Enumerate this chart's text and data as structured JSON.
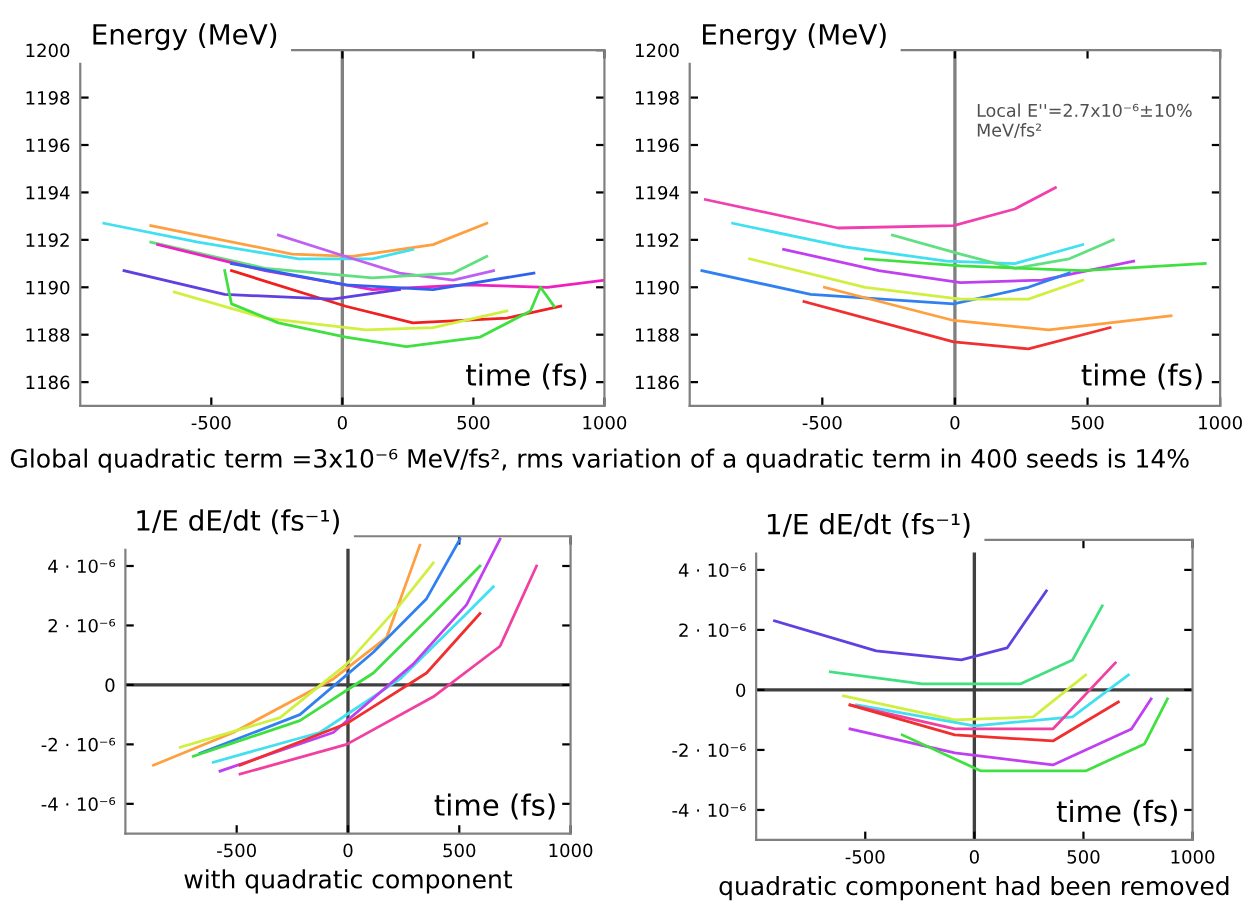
{
  "chart_data": [
    {
      "type": "line",
      "ylabel": "Energy (MeV)",
      "xlabel": "time (fs)",
      "xlim": [
        -1000,
        1000
      ],
      "ylim": [
        1185,
        1200
      ],
      "xticks": [
        -500,
        0,
        500,
        1000
      ],
      "yticks": [
        1186,
        1188,
        1190,
        1192,
        1194,
        1196,
        1198,
        1200
      ],
      "annotations": [
        "Global quadratic term =3x10⁻⁶ MeV/fs², rms variation of a quadratic term in 400 seeds is 14%"
      ],
      "ref_lines": [
        {
          "axis": "x",
          "value": 0,
          "color": "#808080"
        }
      ],
      "series": [
        {
          "color": "#ffa040",
          "x": [
            -731,
            -192,
            38,
            346,
            551
          ],
          "values": [
            1192.6,
            1191.4,
            1191.3,
            1191.8,
            1192.7
          ]
        },
        {
          "color": "#40e0f0",
          "x": [
            -910,
            -551,
            -167,
            115,
            269
          ],
          "values": [
            1192.7,
            1191.9,
            1191.2,
            1191.2,
            1191.6
          ]
        },
        {
          "color": "#c060f0",
          "x": [
            -244,
            13,
            218,
            423,
            577
          ],
          "values": [
            1192.2,
            1191.3,
            1190.6,
            1190.3,
            1190.7
          ]
        },
        {
          "color": "#60e080",
          "x": [
            -731,
            -295,
            115,
            423,
            551
          ],
          "values": [
            1191.9,
            1190.8,
            1190.4,
            1190.6,
            1191.3
          ]
        },
        {
          "color": "#f020c0",
          "x": [
            -705,
            -295,
            115,
            474,
            782,
            1000
          ],
          "values": [
            1191.8,
            1190.7,
            1189.9,
            1190.1,
            1190.0,
            1190.3
          ]
        },
        {
          "color": "#3060f0",
          "x": [
            -423,
            13,
            346,
            731
          ],
          "values": [
            1191.0,
            1190.1,
            1189.9,
            1190.6
          ]
        },
        {
          "color": "#f02020",
          "x": [
            -423,
            13,
            269,
            628,
            833
          ],
          "values": [
            1190.7,
            1189.2,
            1188.5,
            1188.7,
            1189.2
          ]
        },
        {
          "color": "#6040e0",
          "x": [
            -833,
            -449,
            -38,
            218
          ],
          "values": [
            1190.7,
            1189.7,
            1189.5,
            1189.9
          ]
        },
        {
          "color": "#d0f040",
          "x": [
            -641,
            -295,
            90,
            346,
            628
          ],
          "values": [
            1189.8,
            1188.7,
            1188.2,
            1188.3,
            1189.0
          ]
        },
        {
          "color": "#40e040",
          "x": [
            -449,
            -423,
            -244,
            13,
            244,
            526,
            718,
            756,
            808
          ],
          "values": [
            1190.7,
            1189.3,
            1188.5,
            1187.9,
            1187.5,
            1187.9,
            1189.0,
            1190.0,
            1189.2
          ]
        }
      ]
    },
    {
      "type": "line",
      "ylabel": "Energy (MeV)",
      "xlabel": "time (fs)",
      "subtitle": "Local E''=2.7x10⁻⁶±10% MeV/fs²",
      "xlim": [
        -1000,
        1000
      ],
      "ylim": [
        1185,
        1200
      ],
      "xticks": [
        -500,
        0,
        500,
        1000
      ],
      "yticks": [
        1186,
        1188,
        1190,
        1192,
        1194,
        1196,
        1198,
        1200
      ],
      "ref_lines": [
        {
          "axis": "x",
          "value": 0,
          "color": "#808080"
        }
      ],
      "series": [
        {
          "color": "#f040b0",
          "x": [
            -941,
            -441,
            -5,
            226,
            379
          ],
          "values": [
            1193.7,
            1192.5,
            1192.6,
            1193.3,
            1194.2
          ]
        },
        {
          "color": "#40e0f0",
          "x": [
            -838,
            -415,
            -31,
            226,
            482
          ],
          "values": [
            1192.7,
            1191.7,
            1191.1,
            1191.0,
            1191.8
          ]
        },
        {
          "color": "#60e080",
          "x": [
            -236,
            21,
            226,
            431,
            597
          ],
          "values": [
            1192.2,
            1191.4,
            1190.8,
            1191.2,
            1192.0
          ]
        },
        {
          "color": "#c040f0",
          "x": [
            -646,
            -287,
            21,
            328,
            674
          ],
          "values": [
            1191.6,
            1190.7,
            1190.2,
            1190.3,
            1191.1
          ]
        },
        {
          "color": "#40e040",
          "x": [
            -338,
            21,
            482,
            944
          ],
          "values": [
            1191.2,
            1190.9,
            1190.7,
            1191.0
          ]
        },
        {
          "color": "#3080f0",
          "x": [
            -954,
            -544,
            -5,
            277,
            431
          ],
          "values": [
            1190.7,
            1189.7,
            1189.3,
            1190.0,
            1190.6
          ]
        },
        {
          "color": "#d0f040",
          "x": [
            -774,
            -338,
            21,
            277,
            482
          ],
          "values": [
            1191.2,
            1190.0,
            1189.5,
            1189.5,
            1190.3
          ]
        },
        {
          "color": "#ffa040",
          "x": [
            -492,
            -5,
            354,
            815
          ],
          "values": [
            1190.0,
            1188.6,
            1188.2,
            1188.8
          ]
        },
        {
          "color": "#f03030",
          "x": [
            -569,
            -5,
            277,
            585
          ],
          "values": [
            1189.4,
            1187.7,
            1187.4,
            1188.3
          ]
        }
      ]
    },
    {
      "type": "line",
      "ylabel": "1/E dE/dt (fs⁻¹)",
      "xlabel": "time (fs)",
      "xlim": [
        -1000,
        1000
      ],
      "ylim": [
        -5e-06,
        5e-06
      ],
      "xticks": [
        -500,
        0,
        500,
        1000
      ],
      "yticks": [
        {
          "value": -4e-06,
          "label": "-4 · 10⁻⁶"
        },
        {
          "value": -2e-06,
          "label": "-2 · 10⁻⁶"
        },
        0,
        {
          "value": 2e-06,
          "label": "2 · 10⁻⁶"
        },
        {
          "value": 4e-06,
          "label": "4 · 10⁻⁶"
        }
      ],
      "annotations": [
        "with quadratic component"
      ],
      "ref_lines": [
        {
          "axis": "x",
          "value": 0,
          "color": "#404040"
        },
        {
          "axis": "y",
          "value": 0,
          "color": "#404040"
        }
      ],
      "series": [
        {
          "color": "#ffa040",
          "x": [
            -874,
            -515,
            -66,
            174,
            323
          ],
          "values": [
            -2.7e-06,
            -1.6e-06,
            2e-07,
            1.6e-06,
            4.7e-06
          ]
        },
        {
          "color": "#d0f040",
          "x": [
            -754,
            -305,
            -6,
            234,
            383
          ],
          "values": [
            -2.1e-06,
            -1.1e-06,
            7e-07,
            2.7e-06,
            4.1e-06
          ]
        },
        {
          "color": "#3080f0",
          "x": [
            -665,
            -216,
            114,
            353,
            503
          ],
          "values": [
            -2.3e-06,
            -1e-06,
            1.1e-06,
            2.9e-06,
            4.9e-06
          ]
        },
        {
          "color": "#40e040",
          "x": [
            -695,
            -216,
            114,
            383,
            593
          ],
          "values": [
            -2.4e-06,
            -1.2e-06,
            4e-07,
            2.4e-06,
            4e-06
          ]
        },
        {
          "color": "#40e0f0",
          "x": [
            -605,
            -126,
            234,
            533,
            653
          ],
          "values": [
            -2.6e-06,
            -1.6e-06,
            2e-07,
            2.4e-06,
            3.3e-06
          ]
        },
        {
          "color": "#c040f0",
          "x": [
            -575,
            -66,
            293,
            533,
            683
          ],
          "values": [
            -2.9e-06,
            -1.6e-06,
            7e-07,
            2.7e-06,
            4.9e-06
          ]
        },
        {
          "color": "#f03030",
          "x": [
            -485,
            -6,
            353,
            593
          ],
          "values": [
            -2.7e-06,
            -1.3e-06,
            4e-07,
            2.4e-06
          ]
        },
        {
          "color": "#f040a0",
          "x": [
            -485,
            -6,
            383,
            683,
            847
          ],
          "values": [
            -3e-06,
            -2e-06,
            -4e-07,
            1.3e-06,
            4e-06
          ]
        }
      ]
    },
    {
      "type": "line",
      "ylabel": "1/E dE/dt (fs⁻¹)",
      "xlabel": "time (fs)",
      "xlim": [
        -1000,
        1000
      ],
      "ylim": [
        -5e-06,
        5e-06
      ],
      "xticks": [
        -500,
        0,
        500,
        1000
      ],
      "yticks": [
        {
          "value": -4e-06,
          "label": "-4 · 10⁻⁶"
        },
        {
          "value": -2e-06,
          "label": "-2 · 10⁻⁶"
        },
        0,
        {
          "value": 2e-06,
          "label": "2 · 10⁻⁶"
        },
        {
          "value": 4e-06,
          "label": "4 · 10⁻⁶"
        }
      ],
      "annotations": [
        "quadratic component had been removed"
      ],
      "ref_lines": [
        {
          "axis": "x",
          "value": 0,
          "color": "#404040"
        },
        {
          "axis": "y",
          "value": 0,
          "color": "#404040"
        }
      ],
      "series": [
        {
          "color": "#6040e0",
          "x": [
            -916,
            -450,
            -60,
            150,
            330
          ],
          "values": [
            2.3e-06,
            1.3e-06,
            1e-06,
            1.4e-06,
            3.3e-06
          ]
        },
        {
          "color": "#40e080",
          "x": [
            -660,
            -240,
            210,
            450,
            586
          ],
          "values": [
            6e-07,
            2e-07,
            2e-07,
            1e-06,
            2.8e-06
          ]
        },
        {
          "color": "#d0f040",
          "x": [
            -600,
            -90,
            270,
            510
          ],
          "values": [
            -2e-07,
            -1e-06,
            -9e-07,
            5e-07
          ]
        },
        {
          "color": "#40e0f0",
          "x": [
            -540,
            0,
            450,
            706
          ],
          "values": [
            -5e-07,
            -1.2e-06,
            -9e-07,
            5e-07
          ]
        },
        {
          "color": "#f040a0",
          "x": [
            -570,
            -90,
            360,
            646
          ],
          "values": [
            -5e-07,
            -1.3e-06,
            -1.3e-06,
            9e-07
          ]
        },
        {
          "color": "#f03030",
          "x": [
            -570,
            -90,
            360,
            660
          ],
          "values": [
            -5e-07,
            -1.5e-06,
            -1.7e-06,
            -4e-07
          ]
        },
        {
          "color": "#c040f0",
          "x": [
            -570,
            -90,
            360,
            720,
            810
          ],
          "values": [
            -1.3e-06,
            -2.1e-06,
            -2.5e-06,
            -1.3e-06,
            -3e-07
          ]
        },
        {
          "color": "#40e040",
          "x": [
            -330,
            30,
            510,
            780,
            885
          ],
          "values": [
            -1.5e-06,
            -2.7e-06,
            -2.7e-06,
            -1.8e-06,
            -3e-07
          ]
        }
      ]
    }
  ]
}
